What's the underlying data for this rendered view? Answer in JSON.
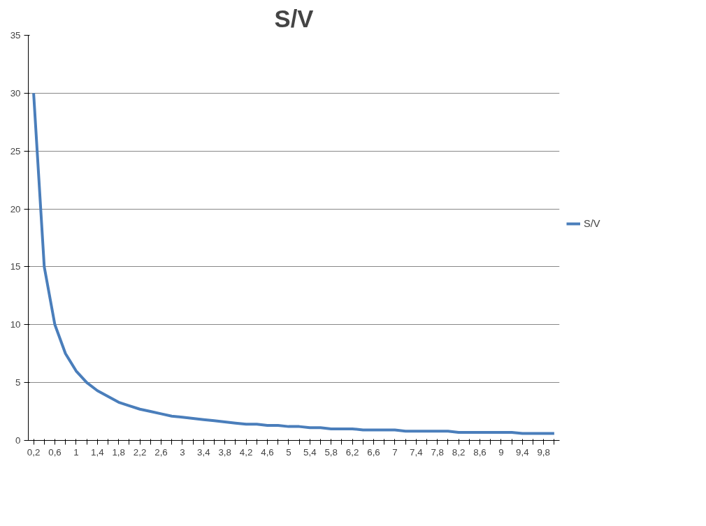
{
  "chart_data": {
    "type": "line",
    "title": "S/V",
    "categories": [
      "0,2",
      null,
      "0,6",
      null,
      "1",
      null,
      "1,4",
      null,
      "1,8",
      null,
      "2,2",
      null,
      "2,6",
      null,
      "3",
      null,
      "3,4",
      null,
      "3,8",
      null,
      "4,2",
      null,
      "4,6",
      null,
      "5",
      null,
      "5,4",
      null,
      "5,8",
      null,
      "6,2",
      null,
      "6,6",
      null,
      "7",
      null,
      "7,4",
      null,
      "7,8",
      null,
      "8,2",
      null,
      "8,6",
      null,
      "9",
      null,
      "9,4",
      null,
      "9,8",
      null
    ],
    "series": [
      {
        "name": "S/V",
        "color": "#4a7ebb",
        "values": [
          30,
          15,
          10,
          7.5,
          6,
          5,
          4.3,
          3.8,
          3.3,
          3,
          2.7,
          2.5,
          2.3,
          2.1,
          2,
          1.9,
          1.8,
          1.7,
          1.6,
          1.5,
          1.4,
          1.4,
          1.3,
          1.3,
          1.2,
          1.2,
          1.1,
          1.1,
          1,
          1,
          1,
          0.9,
          0.9,
          0.9,
          0.9,
          0.8,
          0.8,
          0.8,
          0.8,
          0.8,
          0.7,
          0.7,
          0.7,
          0.7,
          0.7,
          0.7,
          0.6,
          0.6,
          0.6,
          0.6
        ]
      }
    ],
    "ylim": [
      0,
      35
    ],
    "yticks": [
      0,
      5,
      10,
      15,
      20,
      25,
      30,
      35
    ],
    "grid": "y",
    "legend": "right",
    "marker": "none",
    "line_style": "solid"
  }
}
